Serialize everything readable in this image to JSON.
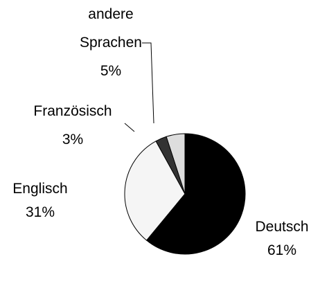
{
  "chart_data": {
    "type": "pie",
    "categories": [
      "Deutsch",
      "Englisch",
      "Französisch",
      "andere Sprachen"
    ],
    "values": [
      61,
      31,
      3,
      5
    ],
    "value_labels": [
      "61%",
      "31%",
      "3%",
      "5%"
    ],
    "colors": [
      "#000000",
      "#f5f5f5",
      "#333333",
      "#dddddd"
    ]
  }
}
